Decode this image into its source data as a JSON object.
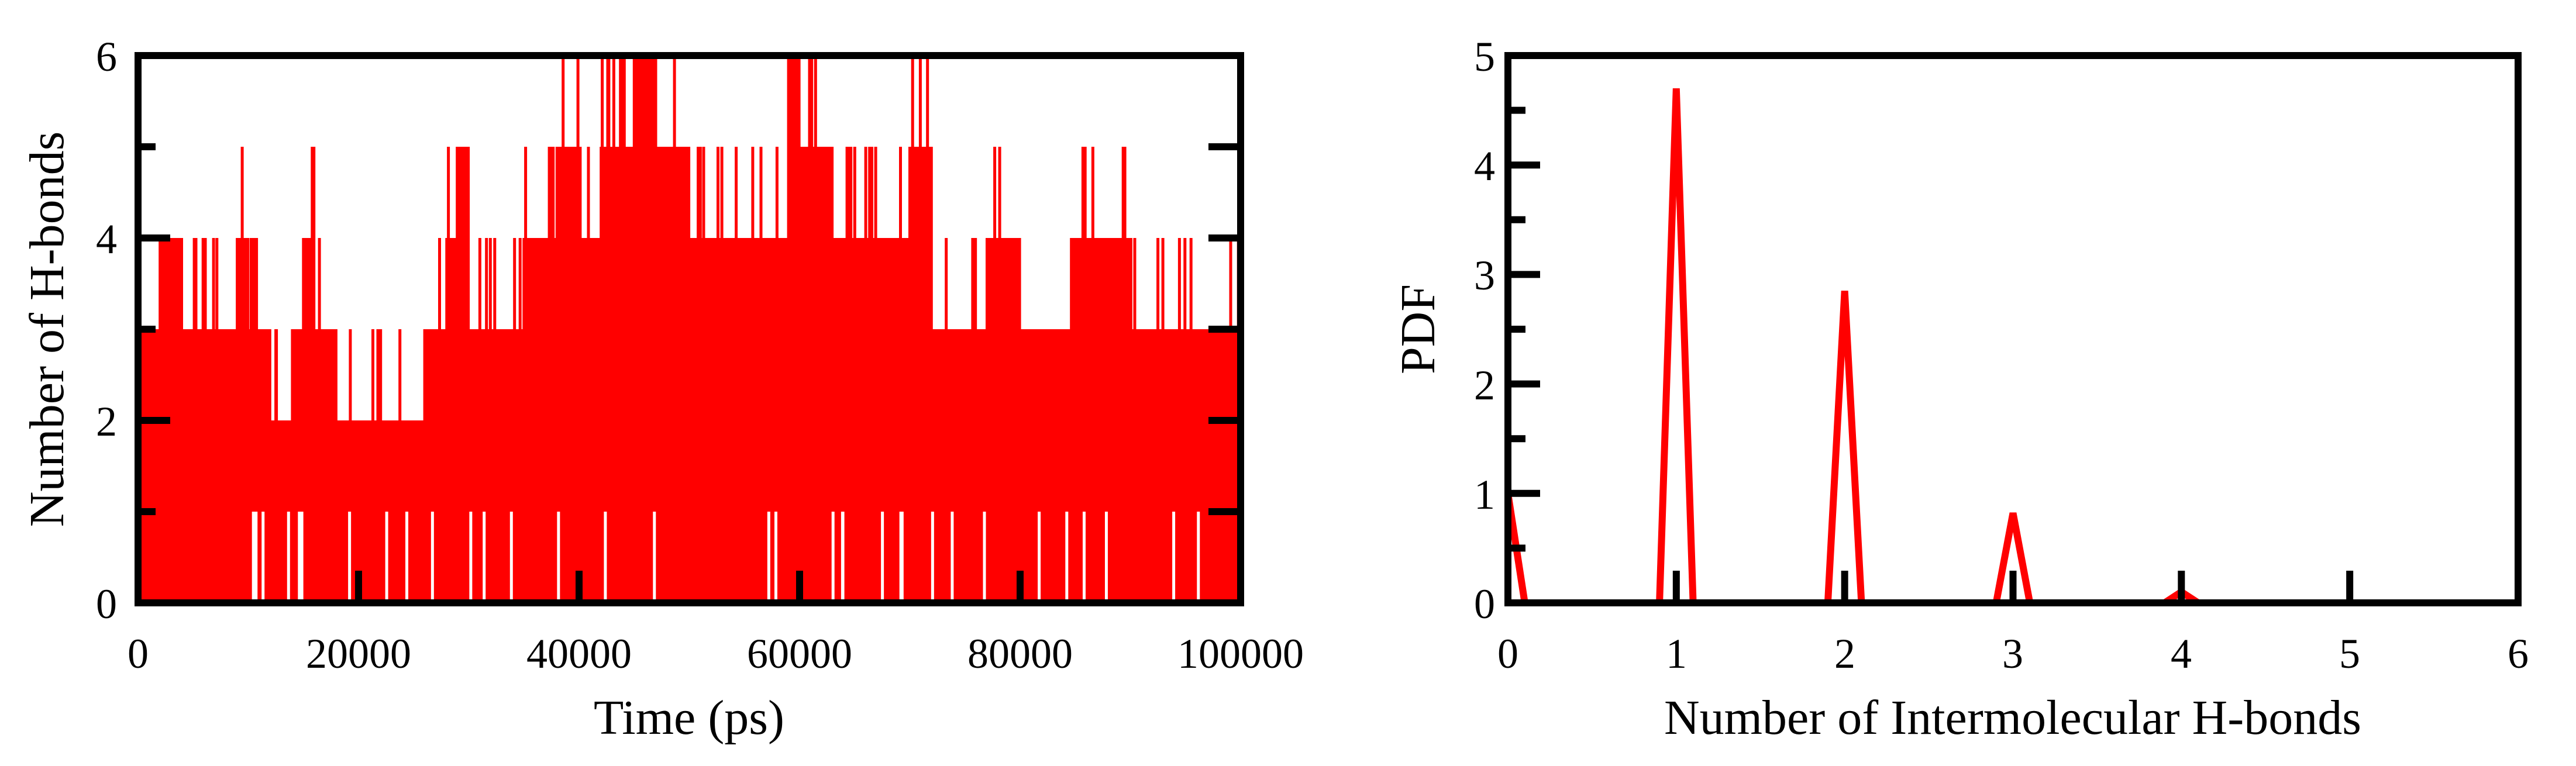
{
  "chart_data": [
    {
      "type": "line",
      "title": "",
      "xlabel": "Time (ps)",
      "ylabel": "Number of H-bonds",
      "xlim": [
        0,
        100000
      ],
      "ylim": [
        0,
        6
      ],
      "xticks": [
        0,
        20000,
        40000,
        60000,
        80000,
        100000
      ],
      "xtick_labels": [
        "0",
        "20000",
        "40000",
        "60000",
        "80000",
        "100000"
      ],
      "yticks": [
        0,
        2,
        4,
        6
      ],
      "ytick_labels": [
        "0",
        "2",
        "4",
        "6"
      ],
      "grid": false,
      "series": [
        {
          "color": "#ff0000",
          "description_points": [
            [
              0,
              3
            ],
            [
              2000,
              4
            ],
            [
              4000,
              3
            ],
            [
              8000,
              3
            ],
            [
              9000,
              4
            ],
            [
              10000,
              3
            ],
            [
              12000,
              2
            ],
            [
              14000,
              3
            ],
            [
              15000,
              4
            ],
            [
              16000,
              3
            ],
            [
              17000,
              3
            ],
            [
              18000,
              2
            ],
            [
              25000,
              2
            ],
            [
              26000,
              3
            ],
            [
              28000,
              4
            ],
            [
              29000,
              5
            ],
            [
              30000,
              3
            ],
            [
              35000,
              4
            ],
            [
              38000,
              5
            ],
            [
              40000,
              4
            ],
            [
              42000,
              5
            ],
            [
              45000,
              6
            ],
            [
              47000,
              5
            ],
            [
              50000,
              4
            ],
            [
              55000,
              4
            ],
            [
              59000,
              6
            ],
            [
              60000,
              5
            ],
            [
              63000,
              4
            ],
            [
              70000,
              5
            ],
            [
              72000,
              3
            ],
            [
              77000,
              4
            ],
            [
              80000,
              3
            ],
            [
              85000,
              4
            ],
            [
              90000,
              3
            ],
            [
              100000,
              3
            ]
          ]
        }
      ]
    },
    {
      "type": "line",
      "title": "",
      "xlabel": "Number of Intermolecular H-bonds",
      "ylabel": "PDF",
      "xlim": [
        0,
        6
      ],
      "ylim": [
        0,
        5
      ],
      "xticks": [
        0,
        1,
        2,
        3,
        4,
        5,
        6
      ],
      "xtick_labels": [
        "0",
        "1",
        "2",
        "3",
        "4",
        "5",
        "6"
      ],
      "yticks": [
        0,
        1,
        2,
        3,
        4,
        5
      ],
      "ytick_labels": [
        "0",
        "1",
        "2",
        "3",
        "4",
        "5"
      ],
      "grid": false,
      "series": [
        {
          "color": "#ff0000",
          "x": [
            0,
            0.1,
            0.9,
            1,
            1.1,
            1.9,
            2,
            2.1,
            2.9,
            3,
            3.1,
            3.9,
            4,
            4.1
          ],
          "y": [
            1.0,
            0,
            0,
            4.7,
            0,
            0,
            2.85,
            0,
            0,
            0.82,
            0,
            0,
            0.1,
            0
          ]
        }
      ]
    }
  ],
  "colors": {
    "series": "#ff0000",
    "axes": "#000000",
    "background": "#ffffff"
  }
}
